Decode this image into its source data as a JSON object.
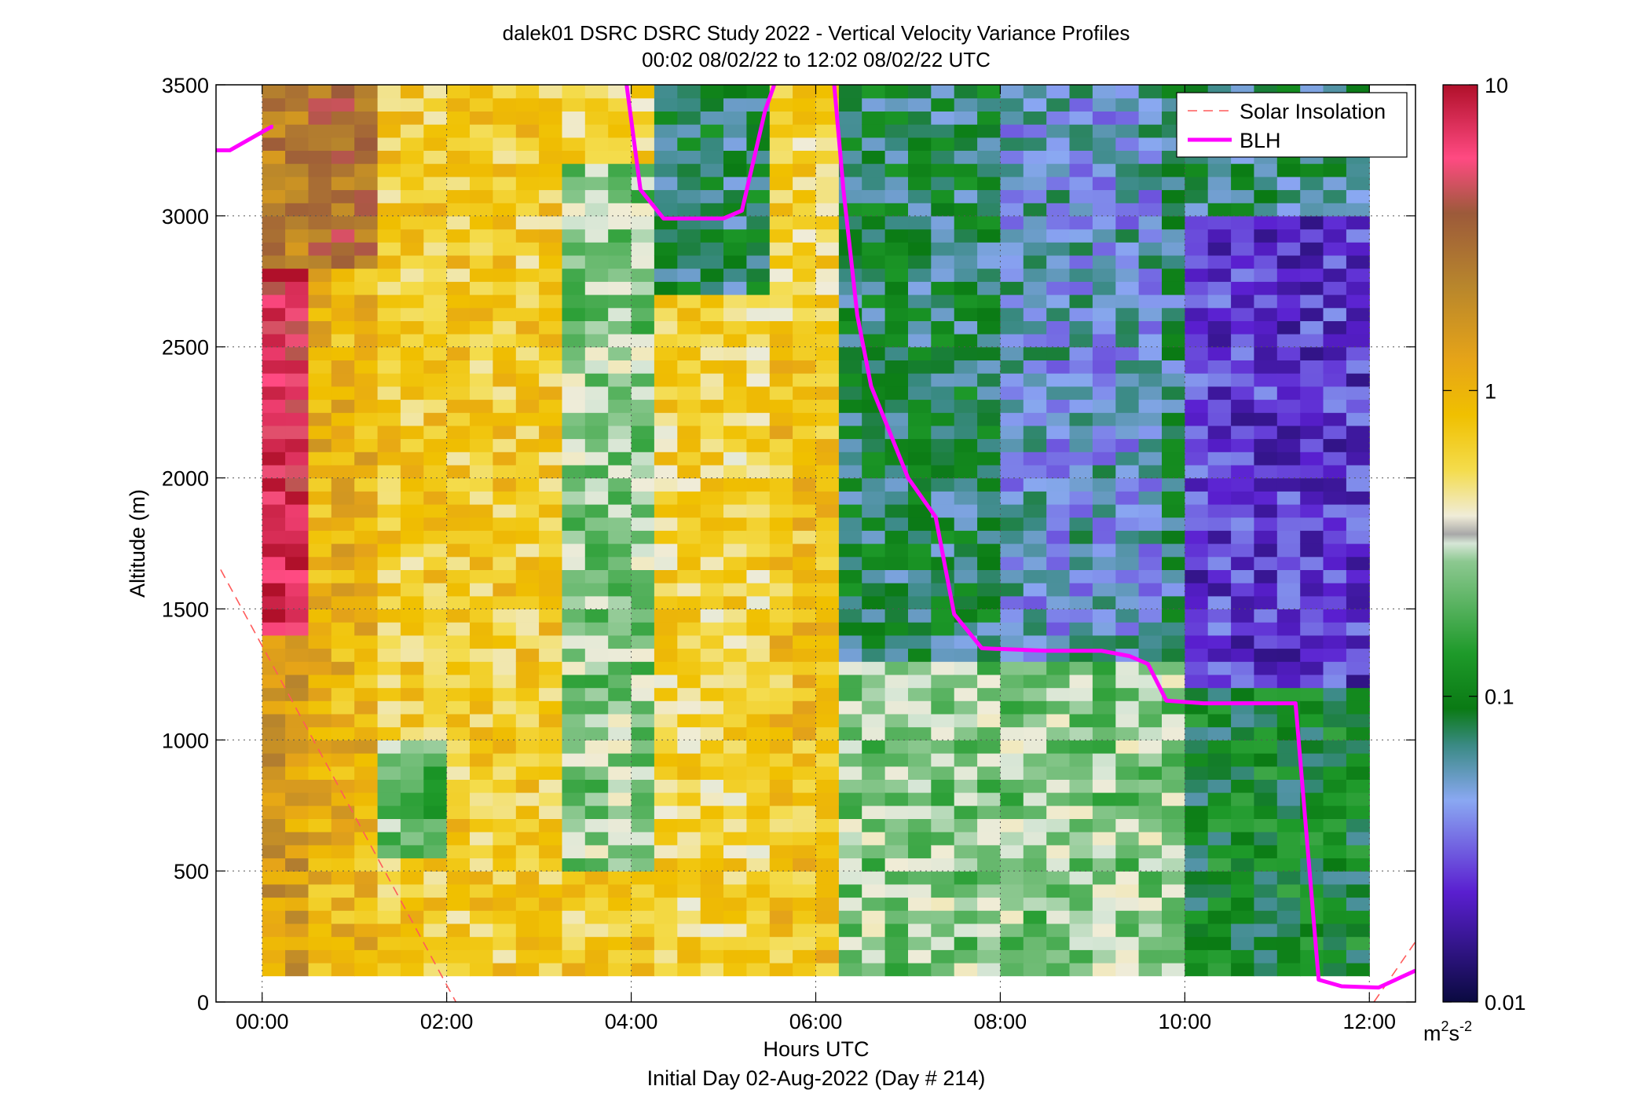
{
  "chart_data": {
    "type": "heatmap",
    "title": "dalek01 DSRC DSRC Study 2022 - Vertical Velocity Variance Profiles",
    "subtitle": "00:02 08/02/22 to 12:02 08/02/22  UTC",
    "xlabel": "Hours UTC",
    "xlabel2": "Initial Day 02-Aug-2022 (Day # 214)",
    "ylabel": "Altitude (m)",
    "xlim": [
      -0.5,
      12.5
    ],
    "ylim": [
      0,
      3500
    ],
    "grid": true,
    "x_ticks": [
      0,
      2,
      4,
      6,
      8,
      10,
      12
    ],
    "x_tick_labels": [
      "00:00",
      "02:00",
      "04:00",
      "06:00",
      "08:00",
      "10:00",
      "12:00"
    ],
    "y_ticks": [
      0,
      500,
      1000,
      1500,
      2000,
      2500,
      3000,
      3500
    ],
    "y_tick_labels": [
      "0",
      "500",
      "1000",
      "1500",
      "2000",
      "2500",
      "3000",
      "3500"
    ],
    "colorbar": {
      "scale": "log",
      "range": [
        0.01,
        10
      ],
      "ticks": [
        0.01,
        0.1,
        1,
        10
      ],
      "tick_labels": [
        "0.01",
        "0.1",
        "1",
        "10"
      ],
      "unit_base": "m",
      "unit_sup1": "2",
      "unit_mid": "s",
      "unit_sup2": "-2"
    },
    "legend": {
      "position": "top-right",
      "entries": [
        {
          "label": "Solar Insolation",
          "color": "#ff5a5a",
          "style": "dashed"
        },
        {
          "label": "BLH",
          "color": "#ff00ff",
          "style": "solid"
        }
      ]
    },
    "heatmap_time_range": [
      0.0,
      12.0
    ],
    "heatmap_altitude_range": [
      100,
      3500
    ],
    "variance_field_m2s2": [
      {
        "x0": 0.0,
        "x1": 0.5,
        "y0": 1400,
        "y1": 2800,
        "value": 7.0
      },
      {
        "x0": 0.0,
        "x1": 0.5,
        "y0": 100,
        "y1": 1400,
        "value": 1.5
      },
      {
        "x0": 0.0,
        "x1": 0.5,
        "y0": 2800,
        "y1": 3500,
        "value": 2.5
      },
      {
        "x0": 0.5,
        "x1": 1.3,
        "y0": 2800,
        "y1": 3500,
        "value": 3.0
      },
      {
        "x0": 0.5,
        "x1": 1.3,
        "y0": 100,
        "y1": 2800,
        "value": 1.0
      },
      {
        "x0": 1.3,
        "x1": 3.2,
        "y0": 100,
        "y1": 3500,
        "value": 0.7
      },
      {
        "x0": 1.3,
        "x1": 2.0,
        "y0": 550,
        "y1": 1000,
        "value": 0.2
      },
      {
        "x0": 3.2,
        "x1": 4.3,
        "y0": 500,
        "y1": 3200,
        "value": 0.25
      },
      {
        "x0": 3.2,
        "x1": 4.3,
        "y0": 100,
        "y1": 500,
        "value": 0.7
      },
      {
        "x0": 4.3,
        "x1": 5.5,
        "y0": 2700,
        "y1": 3500,
        "value": 0.08
      },
      {
        "x0": 5.5,
        "x1": 6.3,
        "y0": 100,
        "y1": 2600,
        "value": 0.8
      },
      {
        "x0": 6.3,
        "x1": 8.0,
        "y0": 1300,
        "y1": 3500,
        "value": 0.08
      },
      {
        "x0": 8.0,
        "x1": 9.8,
        "y0": 1300,
        "y1": 3500,
        "value": 0.05
      },
      {
        "x0": 10.0,
        "x1": 12.0,
        "y0": 1200,
        "y1": 3000,
        "value": 0.025
      },
      {
        "x0": 10.0,
        "x1": 12.0,
        "y0": 100,
        "y1": 1200,
        "value": 0.1
      }
    ],
    "series": [
      {
        "name": "Solar Insolation",
        "style": "dashed",
        "x": [
          -0.45,
          2.1
        ],
        "y": [
          1650,
          0
        ]
      },
      {
        "name": "Solar Insolation",
        "style": "dashed",
        "x": [
          12.05,
          12.5
        ],
        "y": [
          0,
          230
        ]
      },
      {
        "name": "BLH",
        "style": "solid",
        "x": [
          -0.5,
          -0.35,
          0.1,
          0.12
        ],
        "y": [
          3250,
          3250,
          3340,
          3340
        ]
      },
      {
        "name": "BLH",
        "style": "solid",
        "x": [
          3.95,
          4.1,
          4.35,
          4.7,
          5.0,
          5.2,
          5.45,
          5.55
        ],
        "y": [
          3500,
          3100,
          2990,
          2990,
          2990,
          3020,
          3400,
          3500
        ]
      },
      {
        "name": "BLH",
        "style": "solid",
        "x": [
          6.2,
          6.3,
          6.45,
          6.6,
          6.75,
          7.0,
          7.3,
          7.5,
          7.8,
          8.5,
          9.1,
          9.4,
          9.6,
          9.8,
          10.2,
          11.1,
          11.2,
          11.45,
          11.7,
          12.1,
          12.5
        ],
        "y": [
          3500,
          3100,
          2620,
          2350,
          2220,
          2000,
          1850,
          1480,
          1350,
          1340,
          1340,
          1320,
          1290,
          1150,
          1140,
          1140,
          1140,
          85,
          60,
          55,
          120
        ]
      }
    ]
  }
}
